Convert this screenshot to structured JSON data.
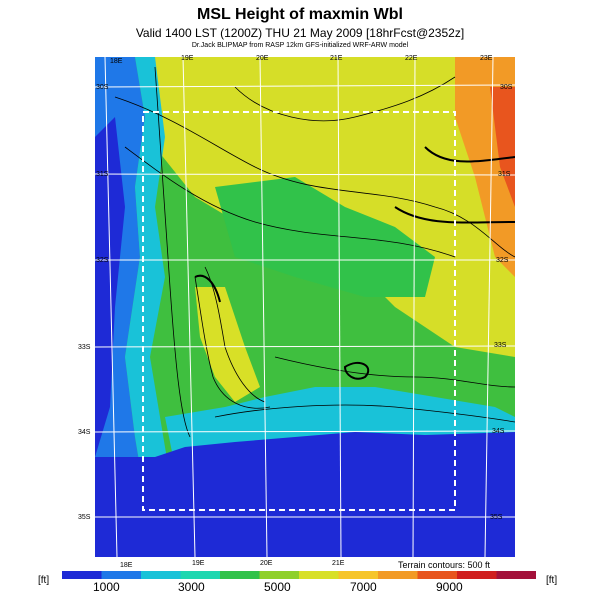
{
  "header": {
    "title": "MSL Height of maxmin Wbl",
    "subtitle": "Valid 1400 LST (1200Z) THU 21 May 2009 [18hrFcst@2352z]",
    "credit": "Dr.Jack BLIPMAP from RASP 12km GFS-initialized WRF-ARW model"
  },
  "map": {
    "top_lon_labels": [
      "18E",
      "19E",
      "20E",
      "21E",
      "22E",
      "23E"
    ],
    "bottom_lon_labels": [
      "18E",
      "19E",
      "20E",
      "21E"
    ],
    "left_lat_labels": [
      "30S",
      "31S",
      "32S",
      "33S",
      "34S",
      "35S"
    ],
    "right_lat_labels": [
      "30S",
      "31S",
      "32S",
      "33S",
      "34S",
      "35S"
    ],
    "terrain_note": "Terrain contours: 500 ft"
  },
  "colorbar": {
    "unit_left": "[ft]",
    "unit_right": "[ft]",
    "labels": [
      "1000",
      "3000",
      "5000",
      "7000",
      "9000"
    ],
    "colors": [
      "#1e2ad6",
      "#1f78e8",
      "#19c2d8",
      "#1fd7b0",
      "#31c24a",
      "#8fd02a",
      "#d8e027",
      "#f6c52a",
      "#f29a26",
      "#e8551e",
      "#d01e1e",
      "#a3103a"
    ]
  }
}
